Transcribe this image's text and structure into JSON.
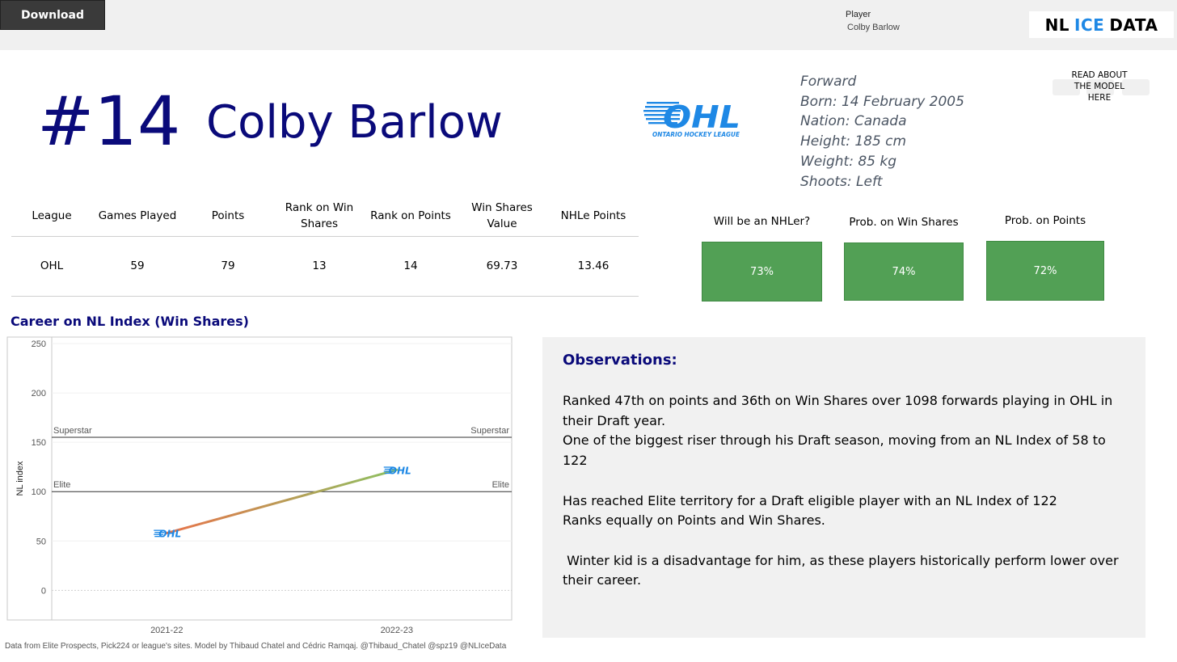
{
  "toolbar": {
    "download_label": "Download"
  },
  "filter": {
    "label": "Player",
    "value": "Colby Barlow"
  },
  "brand": {
    "left": "NL",
    "accent": "ICE",
    "right": "DATA",
    "accent_color": "#1e88e5"
  },
  "header": {
    "jersey": "#14",
    "name": "Colby Barlow"
  },
  "league_logo": {
    "letters": "OHL",
    "caption": "ONTARIO HOCKEY LEAGUE",
    "color": "#1e88e5"
  },
  "bio": {
    "position": "Forward",
    "born": "Born: 14 February 2005",
    "nation": "Nation: Canada",
    "height": "Height: 185 cm",
    "weight": "Weight: 85 kg",
    "shoots": "Shoots: Left"
  },
  "read_model": {
    "label_line1": "READ ABOUT",
    "label_line2": "THE MODEL",
    "label_line3": "HERE"
  },
  "stats_table": {
    "headers": [
      "League",
      "Games Played",
      "Points",
      "Rank on Win Shares",
      "Rank on Points",
      "Win Shares Value",
      "NHLe Points"
    ],
    "row": [
      "OHL",
      "59",
      "79",
      "13",
      "14",
      "69.73",
      "13.46"
    ]
  },
  "probabilities": [
    {
      "label": "Will be an NHLer?",
      "value": "73%"
    },
    {
      "label": "Prob. on Win Shares",
      "value": "74%"
    },
    {
      "label": "Prob. on Points",
      "value": "72%"
    }
  ],
  "chart_title": "Career on NL Index (Win Shares)",
  "chart_data": {
    "type": "line",
    "title": "Career on NL Index (Win Shares)",
    "xlabel": "",
    "ylabel": "NL index",
    "categories": [
      "2021-22",
      "2022-23"
    ],
    "values": [
      58,
      122
    ],
    "ylim": [
      -30,
      250
    ],
    "yticks": [
      0,
      50,
      100,
      150,
      200,
      250
    ],
    "reference_lines": [
      {
        "label": "Superstar",
        "value": 155
      },
      {
        "label": "Elite",
        "value": 100
      }
    ],
    "marker_label": "OHL",
    "colors": {
      "start": "#e8734a",
      "end": "#8dc262",
      "marker": "#1e88e5"
    },
    "grid": true
  },
  "observations": {
    "title": "Observations:",
    "line1": "Ranked 47th on points and 36th on Win Shares over 1098 forwards playing in OHL in their Draft year.",
    "line2": "One of the biggest riser through his Draft season, moving from an NL Index of 58 to 122",
    "line3": "Has reached Elite territory for a Draft eligible player with an NL Index of 122",
    "line4": "Ranks equally on Points and Win Shares.",
    "line5": " Winter kid is a disadvantage for him, as these players historically perform lower over their career."
  },
  "footer": "Data from Elite Prospects, Pick224 or league's sites. Model by Thibaud Chatel and Cédric Ramqaj. @Thibaud_Chatel @spz19 @NLIceData"
}
